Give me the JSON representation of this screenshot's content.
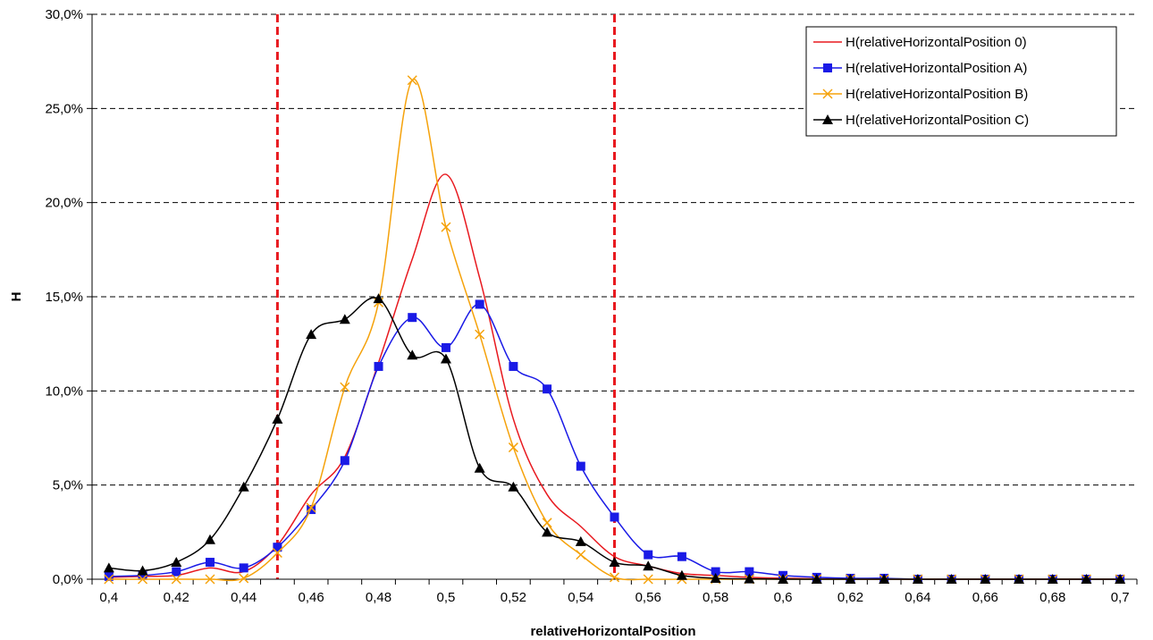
{
  "chart_data": {
    "type": "line",
    "xlabel": "relativeHorizontalPosition",
    "ylabel": "H",
    "xlim": [
      0.395,
      0.705
    ],
    "ylim": [
      0,
      30
    ],
    "x_ticks": [
      0.4,
      0.42,
      0.44,
      0.46,
      0.48,
      0.5,
      0.52,
      0.54,
      0.56,
      0.58,
      0.6,
      0.62,
      0.64,
      0.66,
      0.68,
      0.7
    ],
    "x_tick_labels": [
      "0,4",
      "0,42",
      "0,44",
      "0,46",
      "0,48",
      "0,5",
      "0,52",
      "0,54",
      "0,56",
      "0,58",
      "0,6",
      "0,62",
      "0,64",
      "0,66",
      "0,68",
      "0,7"
    ],
    "y_ticks": [
      0,
      5,
      10,
      15,
      20,
      25,
      30
    ],
    "y_tick_labels": [
      "0,0%",
      "5,0%",
      "10,0%",
      "15,0%",
      "20,0%",
      "25,0%",
      "30,0%"
    ],
    "grid": "horizontal dashed",
    "legend_position": "top-right",
    "reference_lines": [
      {
        "x": 0.45,
        "color": "#e8191f",
        "style": "dashed"
      },
      {
        "x": 0.55,
        "color": "#e8191f",
        "style": "dashed"
      }
    ],
    "x": [
      0.4,
      0.41,
      0.42,
      0.43,
      0.44,
      0.45,
      0.46,
      0.47,
      0.48,
      0.49,
      0.5,
      0.51,
      0.52,
      0.53,
      0.54,
      0.55,
      0.56,
      0.57,
      0.58,
      0.59,
      0.6,
      0.61,
      0.62,
      0.63,
      0.64,
      0.65,
      0.66,
      0.67,
      0.68,
      0.69,
      0.7
    ],
    "series": [
      {
        "name": "H(relativeHorizontalPosition 0)",
        "color": "#e8191f",
        "marker": "none",
        "values": [
          0.1,
          0.15,
          0.2,
          0.6,
          0.4,
          1.8,
          4.5,
          6.5,
          11.5,
          17.0,
          21.5,
          16.0,
          8.5,
          4.5,
          2.8,
          1.2,
          0.7,
          0.3,
          0.2,
          0.1,
          0.05,
          0.02,
          0,
          0,
          0,
          0,
          0,
          0,
          0,
          0,
          0
        ]
      },
      {
        "name": "H(relativeHorizontalPosition A)",
        "color": "#1a1ae6",
        "marker": "square",
        "values": [
          0.15,
          0.2,
          0.4,
          0.9,
          0.6,
          1.7,
          3.7,
          6.3,
          11.3,
          13.9,
          12.3,
          14.6,
          11.3,
          10.1,
          6.0,
          3.3,
          1.3,
          1.2,
          0.4,
          0.4,
          0.2,
          0.1,
          0.05,
          0.05,
          0,
          0,
          0,
          0,
          0,
          0,
          0
        ]
      },
      {
        "name": "H(relativeHorizontalPosition B)",
        "color": "#f5a20b",
        "marker": "x",
        "values": [
          0,
          0,
          0,
          0,
          0.05,
          1.4,
          3.8,
          10.2,
          14.7,
          26.5,
          18.7,
          13.0,
          7.0,
          3.0,
          1.3,
          0.1,
          0,
          0,
          0,
          0,
          0,
          0,
          0,
          0,
          0,
          0,
          0,
          0,
          0,
          0,
          0
        ]
      },
      {
        "name": "H(relativeHorizontalPosition C)",
        "color": "#000000",
        "marker": "triangle",
        "values": [
          0.6,
          0.45,
          0.9,
          2.1,
          4.9,
          8.5,
          13.0,
          13.8,
          14.9,
          11.9,
          11.7,
          5.9,
          4.9,
          2.5,
          2.0,
          0.9,
          0.7,
          0.2,
          0.05,
          0.02,
          0,
          0,
          0,
          0,
          0,
          0,
          0,
          0,
          0,
          0,
          0
        ]
      }
    ]
  }
}
